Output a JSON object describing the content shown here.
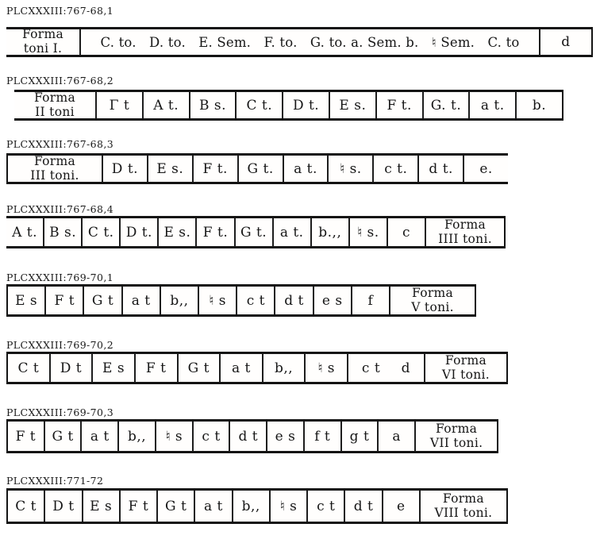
{
  "page": {
    "background": "#ffffff",
    "ink_color": "#161616"
  },
  "sections": [
    {
      "caption": "PLCXXXIII:767-68,1",
      "table": {
        "left_border": false,
        "right_border": true,
        "cells": [
          {
            "kind": "forma",
            "text": "Forma\ntoni I."
          },
          {
            "kind": "run",
            "text": "C. to.   D. to.   E. Sem.   F. to.   G. to. a. Sem. b.   ♮ Sem.   C. to"
          },
          {
            "kind": "end",
            "text": "d"
          }
        ]
      }
    },
    {
      "caption": "PLCXXXIII:767-68,2",
      "table": {
        "left_border": false,
        "right_border": true,
        "cells": [
          {
            "kind": "forma",
            "text": "Forma\nII toni"
          },
          {
            "kind": "note",
            "text": "Γ t"
          },
          {
            "kind": "note",
            "text": "A t."
          },
          {
            "kind": "note",
            "text": "B s."
          },
          {
            "kind": "note",
            "text": "C t."
          },
          {
            "kind": "note",
            "text": "D t."
          },
          {
            "kind": "note",
            "text": "E s."
          },
          {
            "kind": "note",
            "text": "F t."
          },
          {
            "kind": "note",
            "text": "G. t."
          },
          {
            "kind": "note",
            "text": "a t."
          },
          {
            "kind": "note",
            "text": "b."
          }
        ]
      }
    },
    {
      "caption": "PLCXXXIII:767-68,3",
      "table": {
        "left_border": true,
        "right_border": false,
        "cells": [
          {
            "kind": "forma",
            "text": "Forma\nIII toni."
          },
          {
            "kind": "note",
            "text": "D t."
          },
          {
            "kind": "note",
            "text": "E s."
          },
          {
            "kind": "note",
            "text": "F t."
          },
          {
            "kind": "note",
            "text": "G t."
          },
          {
            "kind": "note",
            "text": "a t."
          },
          {
            "kind": "note",
            "text": "♮ s."
          },
          {
            "kind": "note",
            "text": "c t."
          },
          {
            "kind": "note",
            "text": "d t."
          },
          {
            "kind": "note",
            "text": "e."
          }
        ]
      }
    },
    {
      "caption": "PLCXXXIII:767-68,4",
      "table": {
        "left_border": false,
        "right_border": true,
        "cells": [
          {
            "kind": "note",
            "text": "A t."
          },
          {
            "kind": "note",
            "text": "B s."
          },
          {
            "kind": "note",
            "text": "C t."
          },
          {
            "kind": "note",
            "text": "D t."
          },
          {
            "kind": "note",
            "text": "E s."
          },
          {
            "kind": "note",
            "text": "F t."
          },
          {
            "kind": "note",
            "text": "G t."
          },
          {
            "kind": "note",
            "text": "a t."
          },
          {
            "kind": "note",
            "text": "b.,,"
          },
          {
            "kind": "note",
            "text": "♮ s."
          },
          {
            "kind": "note",
            "text": "c"
          },
          {
            "kind": "forma",
            "text": "Forma\nIIII toni."
          }
        ]
      }
    },
    {
      "caption": "PLCXXXIII:769-70,1",
      "table": {
        "left_border": true,
        "right_border": true,
        "cells": [
          {
            "kind": "note",
            "text": "E s"
          },
          {
            "kind": "note",
            "text": "F t"
          },
          {
            "kind": "note",
            "text": "G t"
          },
          {
            "kind": "note",
            "text": "a t"
          },
          {
            "kind": "note",
            "text": "b,,"
          },
          {
            "kind": "note",
            "text": "♮ s"
          },
          {
            "kind": "note",
            "text": "c t"
          },
          {
            "kind": "note",
            "text": "d t"
          },
          {
            "kind": "note",
            "text": "e s"
          },
          {
            "kind": "note",
            "text": "f"
          },
          {
            "kind": "forma",
            "text": "Forma\nV toni."
          }
        ]
      }
    },
    {
      "caption": "PLCXXXIII:769-70,2",
      "table": {
        "left_border": true,
        "right_border": true,
        "cells": [
          {
            "kind": "note",
            "text": "C t"
          },
          {
            "kind": "note",
            "text": "D t"
          },
          {
            "kind": "note",
            "text": "E s"
          },
          {
            "kind": "note",
            "text": "F t"
          },
          {
            "kind": "note",
            "text": "G t"
          },
          {
            "kind": "note",
            "text": "a t"
          },
          {
            "kind": "note",
            "text": "b,,"
          },
          {
            "kind": "note",
            "text": "♮ s"
          },
          {
            "kind": "wide",
            "text": "c t  d"
          },
          {
            "kind": "forma",
            "text": "Forma\nVI toni."
          }
        ]
      }
    },
    {
      "caption": "PLCXXXIII:769-70,3",
      "table": {
        "left_border": true,
        "right_border": true,
        "cells": [
          {
            "kind": "note",
            "text": "F t"
          },
          {
            "kind": "note",
            "text": "G t"
          },
          {
            "kind": "note",
            "text": "a t"
          },
          {
            "kind": "note",
            "text": "b,,"
          },
          {
            "kind": "note",
            "text": "♮ s"
          },
          {
            "kind": "note",
            "text": "c t"
          },
          {
            "kind": "note",
            "text": "d t"
          },
          {
            "kind": "note",
            "text": "e s"
          },
          {
            "kind": "note",
            "text": "f t"
          },
          {
            "kind": "note",
            "text": "g t"
          },
          {
            "kind": "note",
            "text": "a"
          },
          {
            "kind": "forma",
            "text": "Forma\nVII toni."
          }
        ]
      }
    },
    {
      "caption": "PLCXXXIII:771-72",
      "table": {
        "left_border": true,
        "right_border": true,
        "cells": [
          {
            "kind": "note",
            "text": "C t"
          },
          {
            "kind": "note",
            "text": "D t"
          },
          {
            "kind": "note",
            "text": "E s"
          },
          {
            "kind": "note",
            "text": "F t"
          },
          {
            "kind": "note",
            "text": "G t"
          },
          {
            "kind": "note",
            "text": "a t"
          },
          {
            "kind": "note",
            "text": "b,,"
          },
          {
            "kind": "note",
            "text": "♮ s"
          },
          {
            "kind": "note",
            "text": "c t"
          },
          {
            "kind": "note",
            "text": "d t"
          },
          {
            "kind": "note",
            "text": "e"
          },
          {
            "kind": "forma",
            "text": "Forma\nVIII toni."
          }
        ]
      }
    }
  ]
}
